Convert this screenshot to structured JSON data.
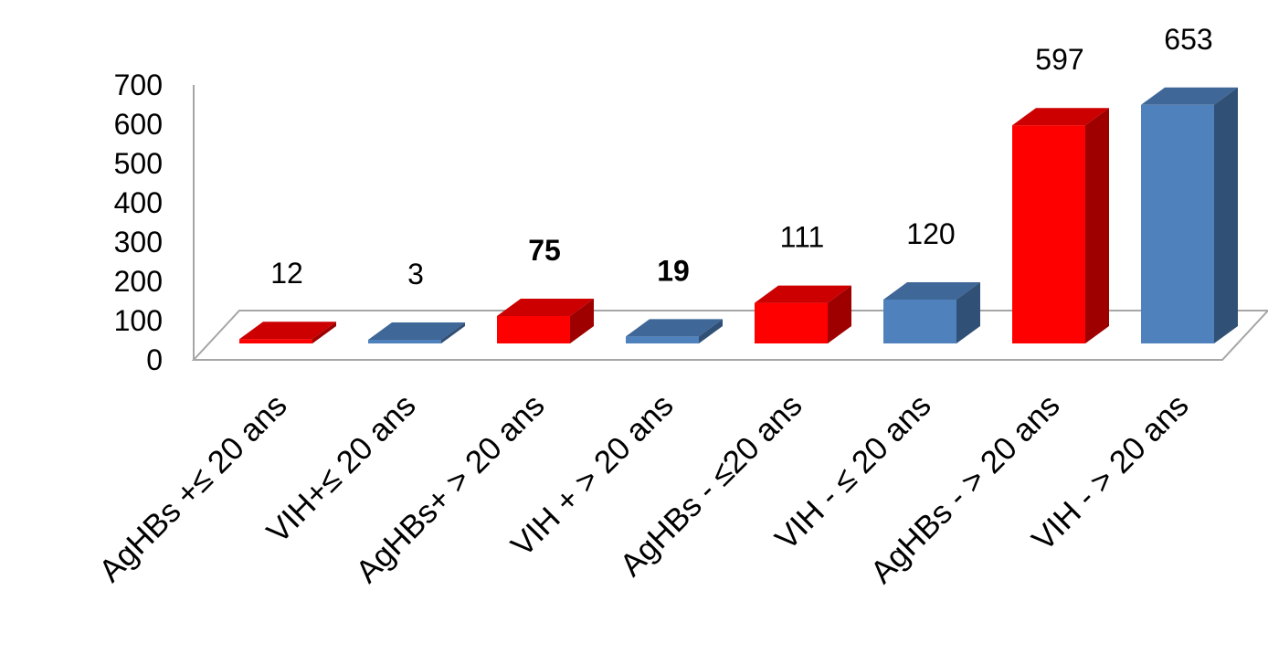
{
  "chart_data": {
    "type": "bar",
    "title": "",
    "xlabel": "",
    "ylabel": "",
    "ylim": [
      0,
      700
    ],
    "y_ticks": [
      0,
      100,
      200,
      300,
      400,
      500,
      600,
      700
    ],
    "categories": [
      "AgHBs +≤ 20 ans",
      "VIH+≤ 20 ans",
      "AgHBs+ > 20 ans",
      "VIH + > 20 ans",
      "AgHBs - ≤20 ans",
      "VIH - ≤ 20 ans",
      "AgHBs - > 20 ans",
      "VIH - > 20 ans"
    ],
    "values": [
      12,
      3,
      75,
      19,
      111,
      120,
      597,
      653
    ],
    "value_labels": [
      "12",
      "3",
      "75",
      "19",
      "111",
      "120",
      "597",
      "653"
    ],
    "bold_labels": [
      false,
      false,
      true,
      true,
      false,
      false,
      false,
      false
    ],
    "bar_colors": [
      "#ff0000",
      "#4f81bd",
      "#ff0000",
      "#4f81bd",
      "#ff0000",
      "#4f81bd",
      "#ff0000",
      "#4f81bd"
    ],
    "grid": false,
    "legend": "none",
    "style": "3d-column"
  }
}
